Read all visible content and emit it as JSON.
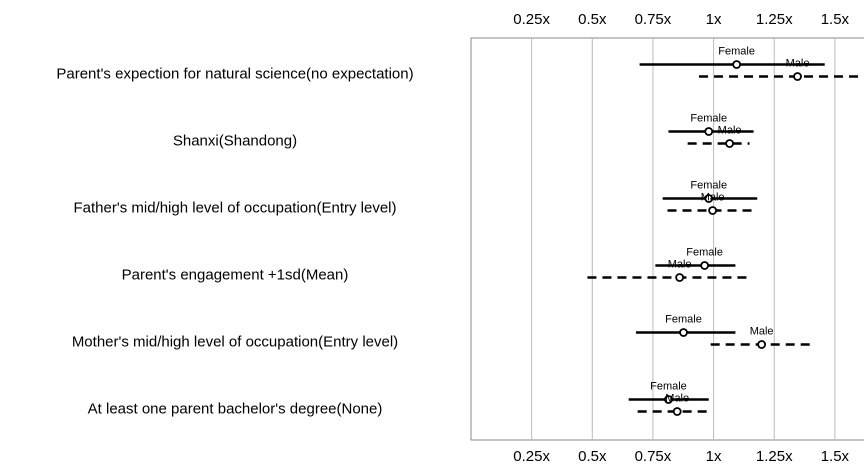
{
  "chart_data": {
    "type": "forest",
    "categories": [
      "Parent's expection for natural science(no expectation)",
      "Shanxi(Shandong)",
      "Father's mid/high level of occupation(Entry level)",
      "Parent's engagement +1sd(Mean)",
      "Mother's mid/high level of occupation(Entry level)",
      "At least one parent bachelor's degree(None)"
    ],
    "series": [
      {
        "name": "Female",
        "color": "#000000",
        "line_style": "solid",
        "values": [
          1.095,
          0.98,
          0.98,
          0.963,
          0.876,
          0.814
        ],
        "lower": [
          0.695,
          0.814,
          0.79,
          0.76,
          0.68,
          0.65
        ],
        "upper": [
          1.458,
          1.165,
          1.18,
          1.09,
          1.09,
          0.98
        ]
      },
      {
        "name": "Male",
        "color": "#000000",
        "line_style": "dashed",
        "values": [
          1.346,
          1.066,
          0.996,
          0.86,
          1.198,
          0.85
        ],
        "lower": [
          0.94,
          0.893,
          0.81,
          0.48,
          0.988,
          0.687
        ],
        "upper": [
          1.7,
          1.148,
          1.18,
          1.14,
          1.41,
          0.99
        ]
      }
    ],
    "xlim": [
      0,
      1.62
    ],
    "xticks": [
      {
        "value": 0.25,
        "label": "0.25x"
      },
      {
        "value": 0.5,
        "label": "0.5x"
      },
      {
        "value": 0.75,
        "label": "0.75x"
      },
      {
        "value": 1,
        "label": "1x"
      },
      {
        "value": 1.25,
        "label": "1.25x"
      },
      {
        "value": 1.5,
        "label": "1.5x"
      }
    ],
    "grid": true
  }
}
